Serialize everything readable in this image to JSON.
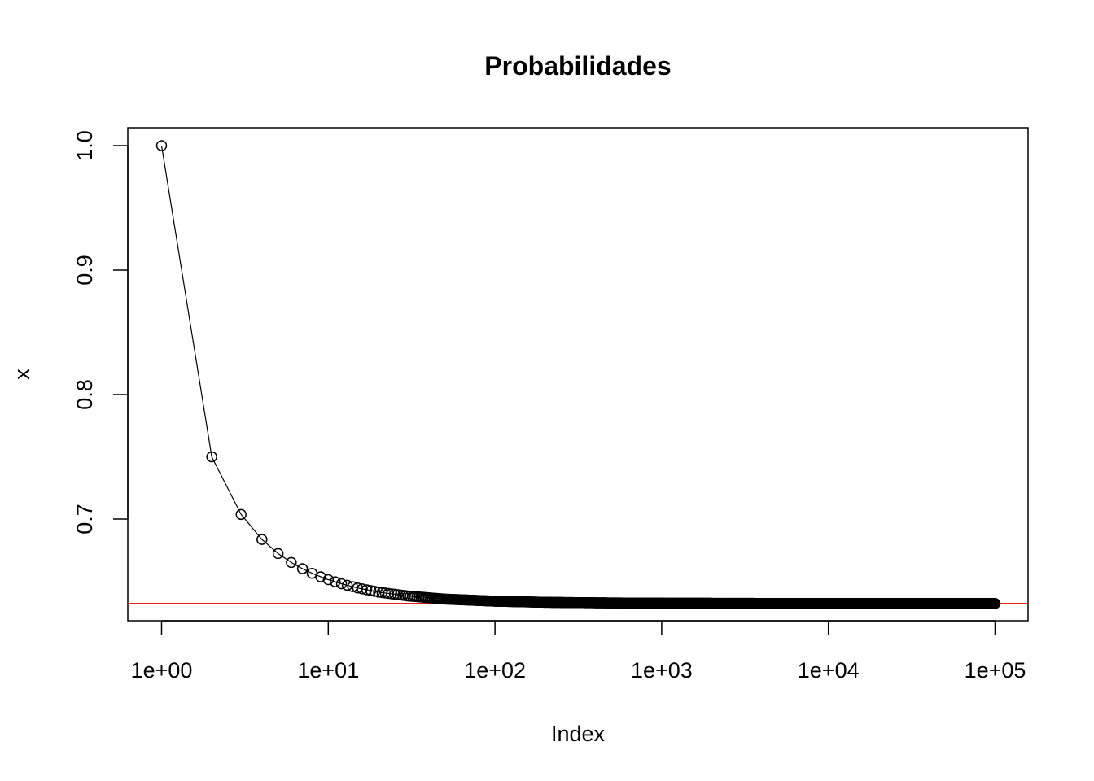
{
  "chart_data": {
    "type": "line",
    "title": "Probabilidades",
    "xlabel": "Index",
    "ylabel": "x",
    "x_scale": "log",
    "xlim": [
      1,
      100000
    ],
    "ylim": [
      0.6303,
      1.0
    ],
    "x_ticks": [
      1,
      10,
      100,
      1000,
      10000,
      100000
    ],
    "x_tick_labels": [
      "1e+00",
      "1e+01",
      "1e+02",
      "1e+03",
      "1e+04",
      "1e+05"
    ],
    "y_ticks": [
      0.7,
      0.8,
      0.9,
      1.0
    ],
    "y_tick_labels": [
      "0.7",
      "0.8",
      "0.9",
      "1.0"
    ],
    "grid": false,
    "legend": "none",
    "series": [
      {
        "x": [
          1,
          2,
          3,
          4,
          5,
          6,
          7,
          8,
          9,
          10,
          12,
          15,
          20,
          30,
          50,
          100,
          200,
          500,
          1000,
          10000,
          100000
        ],
        "values": [
          1.0,
          0.75,
          0.7037,
          0.6836,
          0.6723,
          0.6651,
          0.6601,
          0.6564,
          0.6536,
          0.6513,
          0.648,
          0.6446,
          0.6413,
          0.6382,
          0.6357,
          0.634,
          0.6331,
          0.6326,
          0.6324,
          0.6321,
          0.6321
        ],
        "color": "#000000",
        "marker": "open-circle"
      }
    ],
    "reference_line": {
      "y": 0.6321,
      "color": "#e00000"
    }
  }
}
